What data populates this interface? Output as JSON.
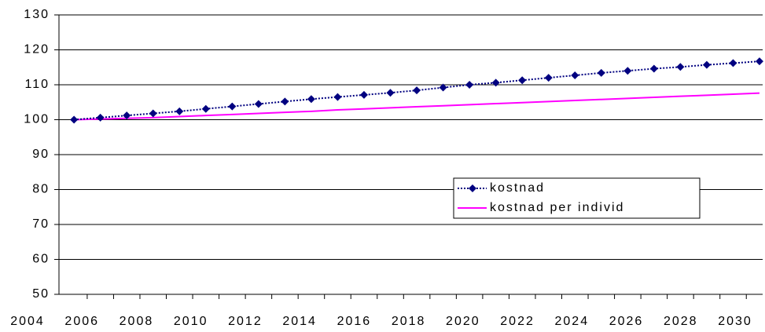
{
  "chart_data": {
    "type": "line",
    "x": [
      2005,
      2006,
      2007,
      2008,
      2009,
      2010,
      2011,
      2012,
      2013,
      2014,
      2015,
      2016,
      2017,
      2018,
      2019,
      2020,
      2021,
      2022,
      2023,
      2024,
      2025,
      2026,
      2027,
      2028,
      2029,
      2030,
      2031
    ],
    "series": [
      {
        "name": "kostnad",
        "color": "#000080",
        "marker": "diamond",
        "dash": "dotted",
        "values": [
          100,
          100.6,
          101.2,
          101.8,
          102.4,
          103.1,
          103.8,
          104.5,
          105.2,
          105.9,
          106.5,
          107.1,
          107.7,
          108.4,
          109.2,
          110,
          110.6,
          111.3,
          112,
          112.7,
          113.4,
          114,
          114.6,
          115.1,
          115.7,
          116.2,
          116.7
        ]
      },
      {
        "name": "kostnad per individ",
        "color": "#ff00ff",
        "values": [
          100,
          100.2,
          100.4,
          100.6,
          100.9,
          101.2,
          101.5,
          101.8,
          102.1,
          102.4,
          102.8,
          103.1,
          103.4,
          103.7,
          104,
          104.3,
          104.6,
          104.9,
          105.2,
          105.5,
          105.8,
          106.1,
          106.4,
          106.7,
          107,
          107.3,
          107.6
        ]
      }
    ],
    "xlim": [
      2004.43,
      2031.12
    ],
    "xticks": [
      2004,
      2006,
      2008,
      2010,
      2012,
      2014,
      2016,
      2018,
      2020,
      2022,
      2024,
      2026,
      2028,
      2030
    ],
    "ylim": [
      50,
      130
    ],
    "yticks": [
      50,
      60,
      70,
      80,
      90,
      100,
      110,
      120,
      130
    ],
    "grid": true,
    "legend": "right"
  }
}
